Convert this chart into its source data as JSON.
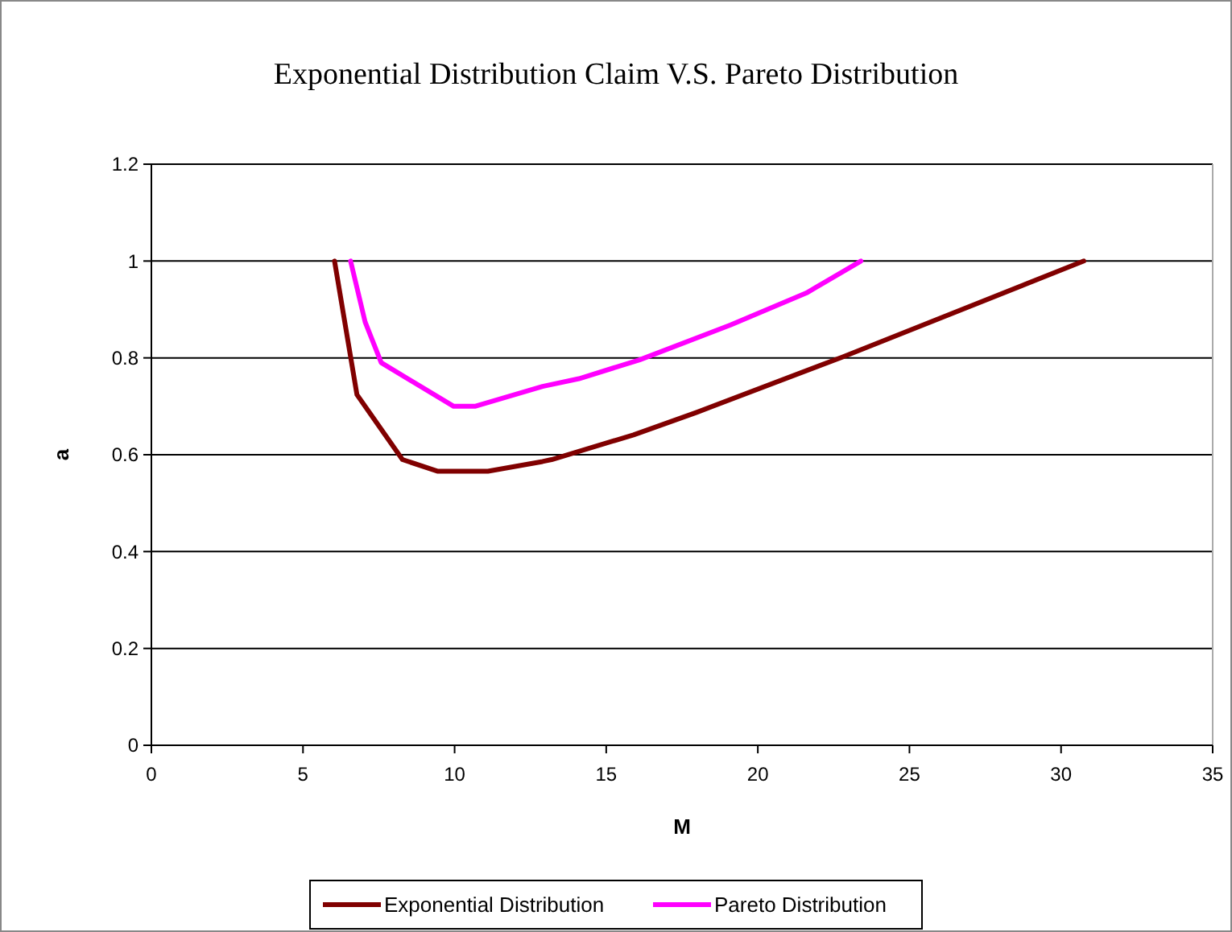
{
  "chart_data": {
    "type": "line",
    "title": "Exponential Distribution Claim V.S. Pareto Distribution",
    "xlabel": "M",
    "ylabel": "a",
    "xlim": [
      0,
      35
    ],
    "xticks": [
      0,
      5,
      10,
      15,
      20,
      25,
      30,
      35
    ],
    "ylim": [
      0,
      1.2
    ],
    "yticks": [
      0,
      0.2,
      0.4,
      0.6,
      0.8,
      1,
      1.2
    ],
    "grid": "y",
    "legend": "bottom",
    "marker": "none",
    "line_style": "solid",
    "series": [
      {
        "name": "Exponential Distribution",
        "color": "#800000",
        "x": [
          6.04,
          6.78,
          8.28,
          9.43,
          11.1,
          12.9,
          13.2,
          15.9,
          18.0,
          22.8,
          30.75
        ],
        "values": [
          1.0,
          0.724,
          0.59,
          0.566,
          0.566,
          0.586,
          0.59,
          0.641,
          0.688,
          0.802,
          1.0
        ]
      },
      {
        "name": "Pareto Distribution",
        "color": "#ff00ff",
        "x": [
          6.57,
          7.05,
          7.58,
          9.97,
          10.67,
          12.9,
          14.1,
          16.1,
          19.1,
          21.6,
          23.4
        ],
        "values": [
          1.0,
          0.874,
          0.79,
          0.7,
          0.7,
          0.741,
          0.757,
          0.796,
          0.868,
          0.934,
          1.0
        ]
      }
    ]
  }
}
